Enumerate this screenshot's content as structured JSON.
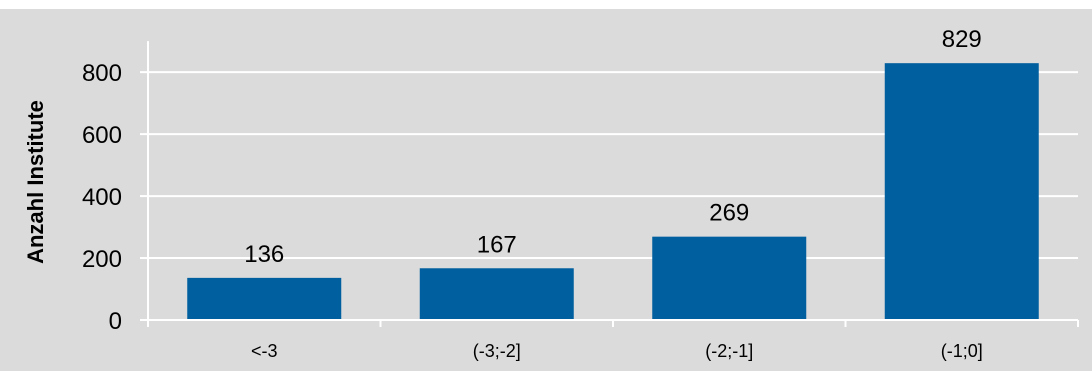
{
  "chart_data": {
    "type": "bar",
    "title": "",
    "xlabel": "",
    "ylabel": "Anzahl Institute",
    "categories": [
      "<-3",
      "(-3;-2]",
      "(-2;-1]",
      "(-1;0]"
    ],
    "values": [
      136,
      167,
      269,
      829
    ],
    "data_labels": [
      "136",
      "167",
      "269",
      "829"
    ],
    "y_ticks": [
      0,
      200,
      400,
      600,
      800
    ],
    "y_tick_labels": [
      "0",
      "200",
      "400",
      "600",
      "800"
    ],
    "ylim": [
      0,
      900
    ],
    "grid": true,
    "legend": "none",
    "colors": {
      "bar": "#005f9e",
      "background": "#dbdbdb",
      "gridline": "#ffffff",
      "axis": "#ffffff"
    }
  }
}
